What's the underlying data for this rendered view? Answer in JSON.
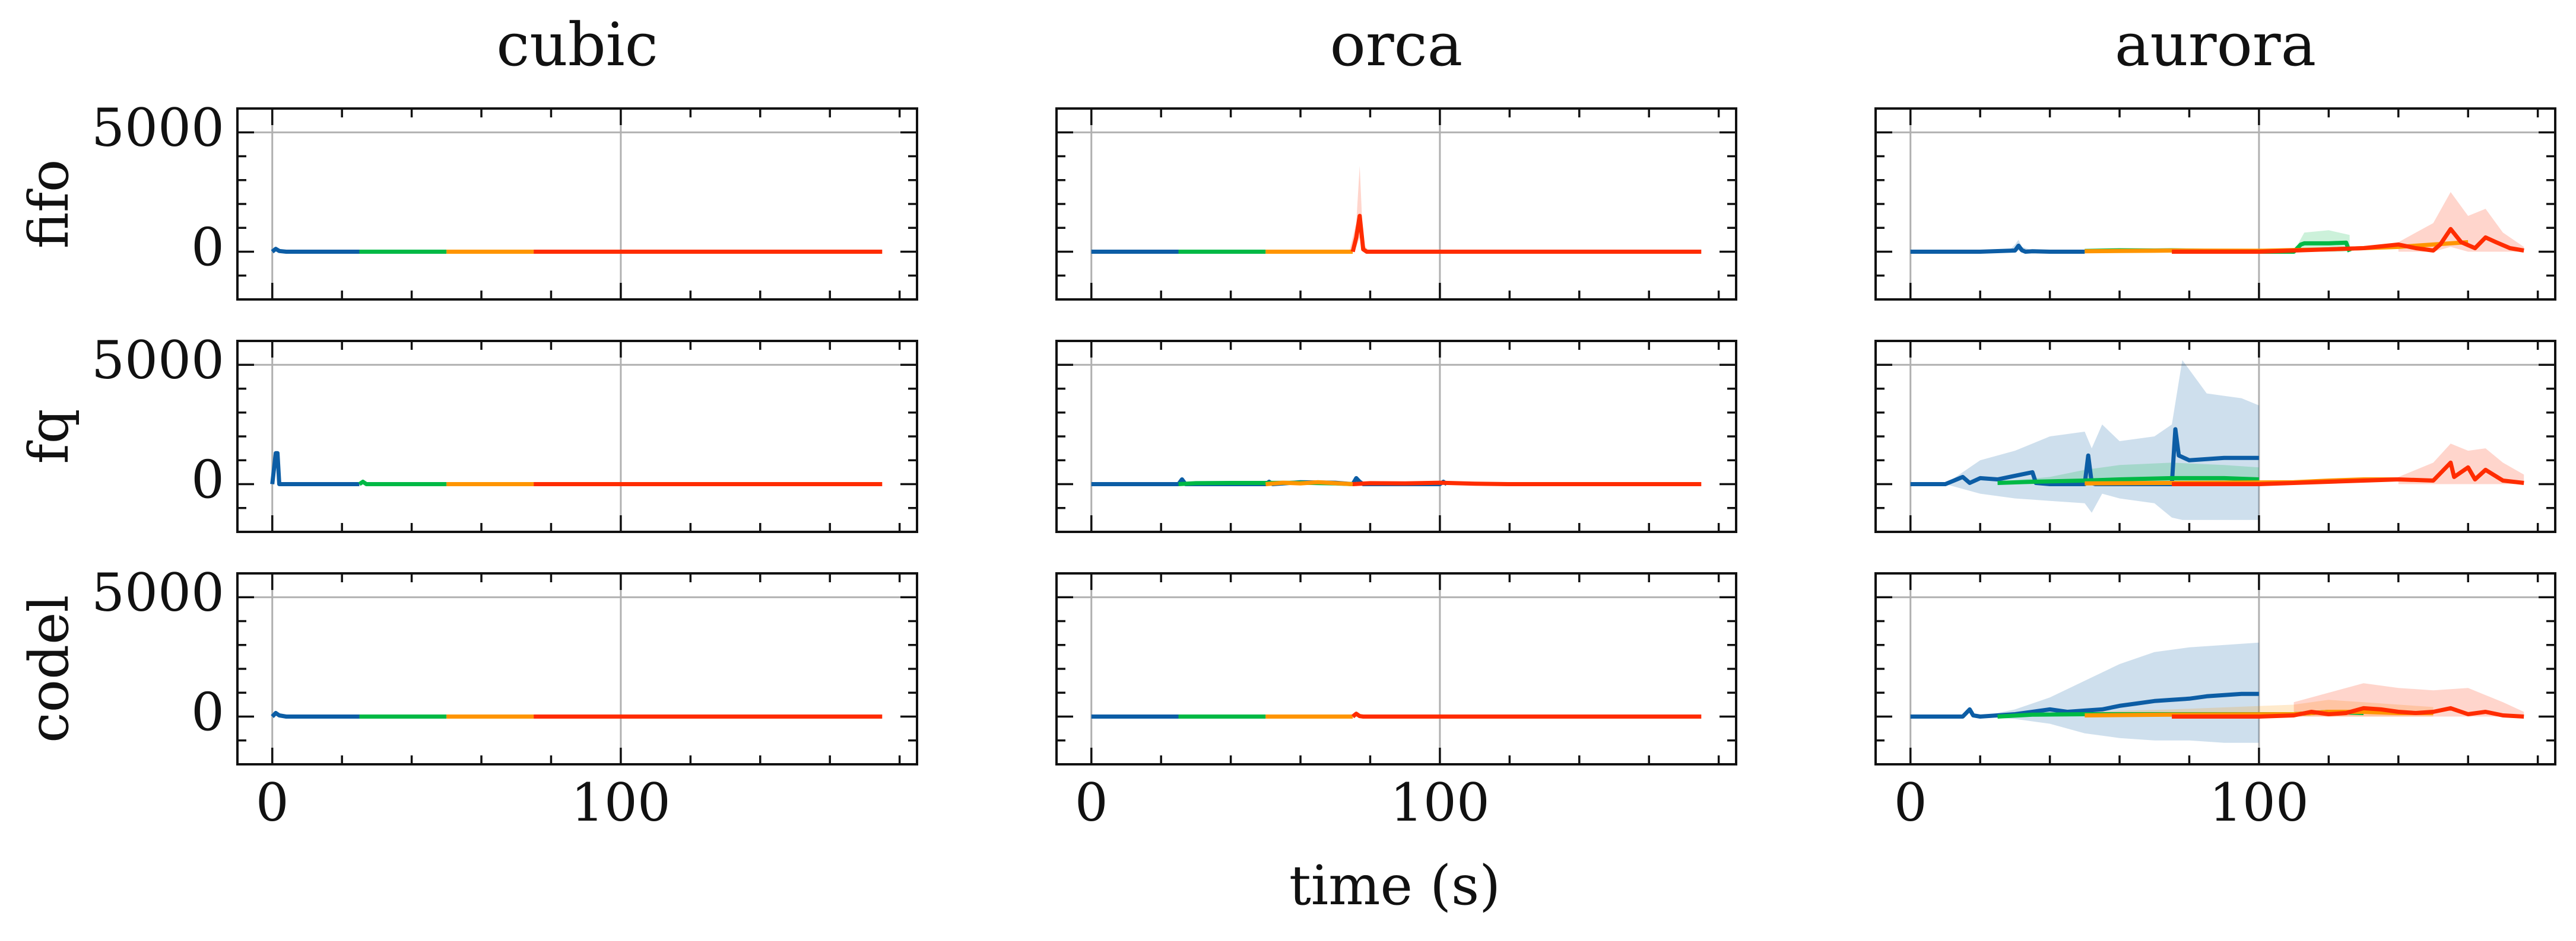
{
  "chart_data": {
    "type": "line",
    "xlabel": "time (s)",
    "ylabel": "",
    "xlim": [
      -10,
      185
    ],
    "ylim": [
      -2000,
      6000
    ],
    "x_ticks": [
      0,
      100
    ],
    "y_ticks": [
      0,
      5000
    ],
    "grid": "major lines at x=0, x=100, y=5000",
    "columns": [
      "cubic",
      "orca",
      "aurora"
    ],
    "rows": [
      "fifo",
      "fq",
      "codel"
    ],
    "series_colors": [
      "#0C5DA5",
      "#00B945",
      "#FF9500",
      "#FF2C00"
    ],
    "segment_ranges": [
      [
        0,
        25
      ],
      [
        25,
        50
      ],
      [
        50,
        75
      ],
      [
        75,
        175
      ]
    ],
    "panels": [
      {
        "row": "fifo",
        "col": "cubic",
        "series": [
          {
            "x": [
              0,
              1,
              2,
              4,
              8,
              25
            ],
            "y": [
              0,
              120,
              30,
              0,
              0,
              0
            ]
          },
          {
            "x": [
              25,
              50
            ],
            "y": [
              0,
              0
            ]
          },
          {
            "x": [
              50,
              75
            ],
            "y": [
              0,
              0
            ]
          },
          {
            "x": [
              75,
              175
            ],
            "y": [
              0,
              0
            ]
          }
        ],
        "bands": []
      },
      {
        "row": "fifo",
        "col": "orca",
        "series": [
          {
            "x": [
              0,
              25
            ],
            "y": [
              0,
              0
            ]
          },
          {
            "x": [
              25,
              50
            ],
            "y": [
              0,
              0
            ]
          },
          {
            "x": [
              50,
              75
            ],
            "y": [
              0,
              0
            ]
          },
          {
            "x": [
              75,
              76,
              77,
              78,
              79,
              175
            ],
            "y": [
              0,
              600,
              1500,
              100,
              0,
              0
            ]
          }
        ],
        "bands": [
          {
            "series": 3,
            "x": [
              74,
              76,
              77,
              78,
              80
            ],
            "lo": [
              0,
              200,
              600,
              0,
              0
            ],
            "hi": [
              0,
              1200,
              3600,
              300,
              0
            ]
          }
        ]
      },
      {
        "row": "fifo",
        "col": "aurora",
        "series": [
          {
            "x": [
              0,
              20,
              30,
              31,
              32,
              33,
              35,
              40,
              50
            ],
            "y": [
              0,
              0,
              50,
              250,
              60,
              0,
              20,
              0,
              0
            ]
          },
          {
            "x": [
              50,
              60,
              70,
              75,
              100,
              110,
              112,
              113,
              120,
              125,
              126
            ],
            "y": [
              30,
              60,
              50,
              60,
              0,
              0,
              300,
              350,
              350,
              380,
              0
            ]
          },
          {
            "x": [
              50,
              60,
              70,
              75,
              100,
              120,
              130,
              140,
              150,
              160
            ],
            "y": [
              20,
              30,
              40,
              50,
              40,
              100,
              150,
              200,
              300,
              400
            ]
          },
          {
            "x": [
              75,
              100,
              110,
              120,
              130,
              140,
              145,
              150,
              152,
              155,
              158,
              162,
              165,
              168,
              172,
              176
            ],
            "y": [
              0,
              0,
              50,
              100,
              150,
              300,
              150,
              50,
              300,
              950,
              400,
              150,
              600,
              400,
              150,
              50
            ]
          }
        ],
        "bands": [
          {
            "series": 0,
            "x": [
              28,
              30,
              31,
              32,
              34,
              36
            ],
            "lo": [
              0,
              0,
              50,
              0,
              0,
              0
            ],
            "hi": [
              0,
              300,
              500,
              200,
              100,
              0
            ]
          },
          {
            "series": 1,
            "x": [
              110,
              113,
              120,
              126
            ],
            "lo": [
              0,
              0,
              0,
              0
            ],
            "hi": [
              0,
              800,
              900,
              700
            ]
          },
          {
            "series": 3,
            "x": [
              140,
              150,
              155,
              160,
              165,
              170,
              176
            ],
            "lo": [
              0,
              0,
              200,
              0,
              0,
              0,
              0
            ],
            "hi": [
              400,
              1200,
              2500,
              1500,
              1800,
              800,
              200
            ]
          }
        ]
      },
      {
        "row": "fq",
        "col": "cubic",
        "series": [
          {
            "x": [
              0,
              1,
              1.5,
              2,
              4,
              25
            ],
            "y": [
              0,
              1300,
              1300,
              0,
              0,
              0
            ]
          },
          {
            "x": [
              25,
              26,
              27,
              50
            ],
            "y": [
              0,
              100,
              0,
              0
            ]
          },
          {
            "x": [
              50,
              75
            ],
            "y": [
              0,
              0
            ]
          },
          {
            "x": [
              75,
              175
            ],
            "y": [
              0,
              0
            ]
          }
        ],
        "bands": []
      },
      {
        "row": "fq",
        "col": "orca",
        "series": [
          {
            "x": [
              0,
              20,
              25,
              26,
              27,
              50,
              51,
              52,
              60,
              70,
              75,
              76,
              77,
              78,
              100,
              101,
              102
            ],
            "y": [
              0,
              0,
              0,
              200,
              0,
              0,
              100,
              0,
              80,
              60,
              0,
              250,
              100,
              0,
              0,
              100,
              0
            ]
          },
          {
            "x": [
              25,
              30,
              40,
              50,
              60,
              70,
              75
            ],
            "y": [
              0,
              40,
              50,
              50,
              60,
              30,
              0
            ]
          },
          {
            "x": [
              50,
              55,
              60,
              65,
              70,
              75
            ],
            "y": [
              0,
              60,
              30,
              80,
              40,
              0
            ]
          },
          {
            "x": [
              75,
              80,
              90,
              100,
              110,
              120,
              175
            ],
            "y": [
              0,
              40,
              30,
              60,
              20,
              0,
              0
            ]
          }
        ],
        "bands": []
      },
      {
        "row": "fq",
        "col": "aurora",
        "series": [
          {
            "x": [
              0,
              10,
              15,
              17,
              20,
              25,
              30,
              35,
              36,
              40,
              50,
              51,
              52,
              53,
              55,
              60,
              70,
              75,
              76,
              77,
              80,
              90,
              100
            ],
            "y": [
              0,
              0,
              300,
              50,
              250,
              200,
              350,
              500,
              50,
              0,
              0,
              1200,
              50,
              0,
              0,
              0,
              0,
              0,
              2300,
              1200,
              1000,
              1100,
              1100
            ]
          },
          {
            "x": [
              25,
              35,
              50,
              60,
              75,
              90,
              100
            ],
            "y": [
              50,
              100,
              150,
              200,
              250,
              250,
              200
            ]
          },
          {
            "x": [
              50,
              75,
              110,
              120,
              130,
              140
            ],
            "y": [
              30,
              50,
              80,
              150,
              200,
              200
            ]
          },
          {
            "x": [
              75,
              100,
              110,
              120,
              130,
              140,
              150,
              155,
              156,
              160,
              162,
              165,
              170,
              176
            ],
            "y": [
              0,
              0,
              50,
              100,
              150,
              200,
              150,
              900,
              300,
              700,
              200,
              600,
              150,
              50
            ]
          }
        ],
        "bands": [
          {
            "series": 0,
            "x": [
              10,
              20,
              30,
              40,
              50,
              52,
              55,
              60,
              70,
              75,
              78,
              85,
              90,
              95,
              100
            ],
            "lo": [
              0,
              -400,
              -600,
              -700,
              -800,
              -1200,
              -400,
              -600,
              -800,
              -1400,
              -1500,
              -1500,
              -1500,
              -1500,
              -1500
            ],
            "hi": [
              0,
              1000,
              1400,
              2000,
              2200,
              1500,
              2500,
              1800,
              2000,
              2500,
              5200,
              3800,
              3700,
              3600,
              3300
            ]
          },
          {
            "series": 1,
            "x": [
              25,
              40,
              50,
              60,
              75,
              90,
              100
            ],
            "lo": [
              0,
              0,
              0,
              0,
              0,
              0,
              0
            ],
            "hi": [
              100,
              300,
              600,
              800,
              900,
              800,
              700
            ]
          },
          {
            "series": 3,
            "x": [
              140,
              150,
              155,
              160,
              165,
              170,
              176
            ],
            "lo": [
              0,
              0,
              0,
              0,
              0,
              0,
              0
            ],
            "hi": [
              300,
              900,
              1700,
              1400,
              1500,
              900,
              400
            ]
          }
        ]
      },
      {
        "row": "codel",
        "col": "cubic",
        "series": [
          {
            "x": [
              0,
              1,
              2,
              4,
              25
            ],
            "y": [
              0,
              150,
              50,
              0,
              0
            ]
          },
          {
            "x": [
              25,
              50
            ],
            "y": [
              0,
              0
            ]
          },
          {
            "x": [
              50,
              75
            ],
            "y": [
              0,
              0
            ]
          },
          {
            "x": [
              75,
              175
            ],
            "y": [
              0,
              0
            ]
          }
        ],
        "bands": []
      },
      {
        "row": "codel",
        "col": "orca",
        "series": [
          {
            "x": [
              0,
              25
            ],
            "y": [
              0,
              0
            ]
          },
          {
            "x": [
              25,
              50
            ],
            "y": [
              0,
              0
            ]
          },
          {
            "x": [
              50,
              75
            ],
            "y": [
              0,
              0
            ]
          },
          {
            "x": [
              75,
              76,
              77,
              78,
              175
            ],
            "y": [
              0,
              120,
              20,
              0,
              0
            ]
          }
        ],
        "bands": []
      },
      {
        "row": "codel",
        "col": "aurora",
        "series": [
          {
            "x": [
              0,
              15,
              17,
              18,
              20,
              25,
              30,
              35,
              40,
              45,
              50,
              55,
              60,
              65,
              70,
              75,
              80,
              85,
              90,
              95,
              100
            ],
            "y": [
              0,
              0,
              300,
              50,
              0,
              50,
              100,
              200,
              300,
              200,
              250,
              300,
              450,
              550,
              650,
              700,
              750,
              850,
              900,
              950,
              950
            ]
          },
          {
            "x": [
              25,
              35,
              50,
              75,
              110,
              120,
              130
            ],
            "y": [
              0,
              80,
              100,
              100,
              100,
              200,
              150
            ]
          },
          {
            "x": [
              50,
              75,
              110,
              120,
              130,
              140,
              150
            ],
            "y": [
              50,
              80,
              100,
              200,
              200,
              150,
              150
            ]
          },
          {
            "x": [
              75,
              100,
              110,
              115,
              120,
              125,
              130,
              135,
              140,
              145,
              150,
              155,
              160,
              165,
              170,
              176
            ],
            "y": [
              0,
              0,
              50,
              200,
              100,
              150,
              350,
              300,
              200,
              150,
              200,
              350,
              100,
              200,
              50,
              0
            ]
          }
        ],
        "bands": [
          {
            "series": 0,
            "x": [
              20,
              30,
              40,
              50,
              60,
              70,
              80,
              90,
              100
            ],
            "lo": [
              0,
              -100,
              -300,
              -700,
              -900,
              -1000,
              -1000,
              -1100,
              -1100
            ],
            "hi": [
              0,
              300,
              800,
              1500,
              2200,
              2700,
              2900,
              3000,
              3100
            ]
          },
          {
            "series": 2,
            "x": [
              50,
              75,
              110,
              120,
              130,
              140,
              150
            ],
            "lo": [
              0,
              0,
              0,
              0,
              0,
              0,
              0
            ],
            "hi": [
              200,
              300,
              500,
              700,
              600,
              500,
              400
            ]
          },
          {
            "series": 3,
            "x": [
              110,
              120,
              130,
              140,
              150,
              160,
              170,
              176
            ],
            "lo": [
              0,
              0,
              0,
              0,
              0,
              0,
              0,
              0
            ],
            "hi": [
              600,
              1000,
              1400,
              1200,
              1100,
              1200,
              600,
              200
            ]
          }
        ]
      }
    ]
  }
}
